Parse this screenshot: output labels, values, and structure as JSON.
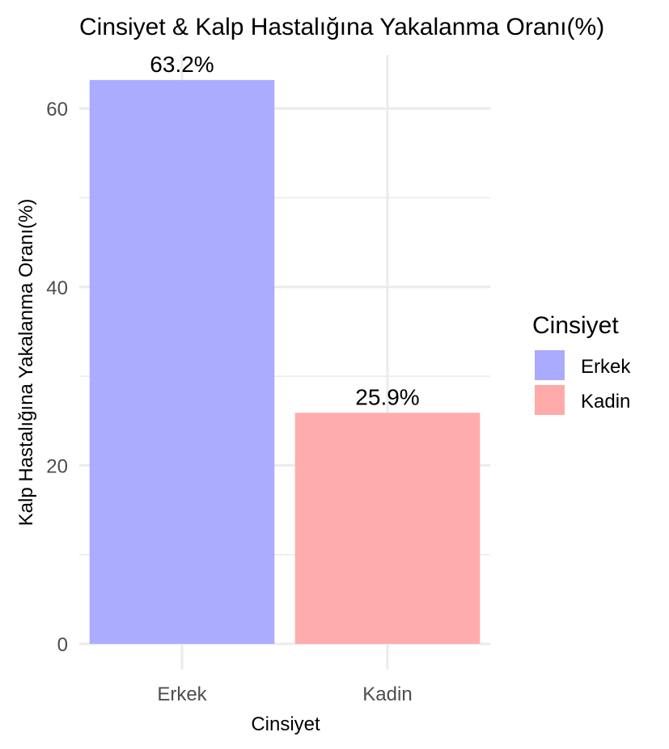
{
  "chart_data": {
    "type": "bar",
    "title": "Cinsiyet & Kalp Hastalığına Yakalanma Oranı(%)",
    "xlabel": "Cinsiyet",
    "ylabel": "Kalp Hastalığına Yakalanma Oranı(%)",
    "categories": [
      "Erkek",
      "Kadin"
    ],
    "values": [
      63.2,
      25.9
    ],
    "data_labels": [
      "63.2%",
      "25.9%"
    ],
    "colors": [
      "#aaaaff",
      "#ffaaaa"
    ],
    "ylim": [
      0,
      66
    ],
    "yticks": [
      0,
      20,
      40,
      60
    ],
    "ytick_labels": [
      "0",
      "20",
      "40",
      "60"
    ],
    "grid": true,
    "legend": {
      "title": "Cinsiyet",
      "position": "right",
      "items": [
        {
          "label": "Erkek",
          "color": "#aaaaff"
        },
        {
          "label": "Kadin",
          "color": "#ffaaaa"
        }
      ]
    }
  }
}
